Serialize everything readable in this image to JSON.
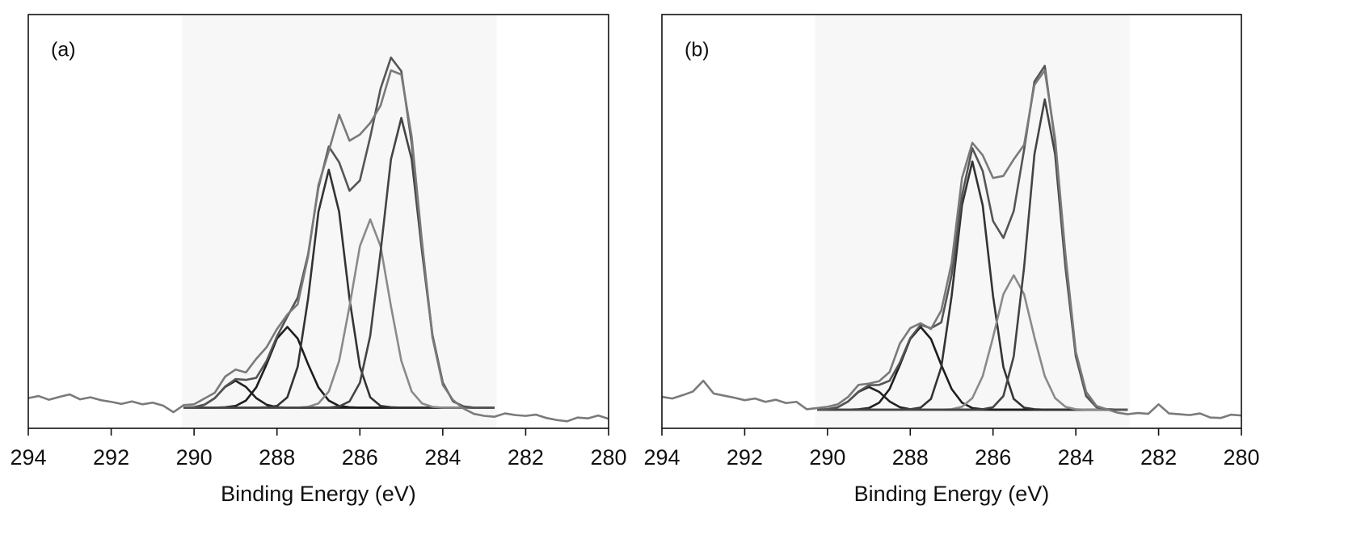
{
  "chart_data": [
    {
      "type": "line",
      "label": "(a)",
      "xlabel": "Binding Energy (eV)",
      "xlim": [
        294,
        280
      ],
      "xticks": [
        294,
        292,
        290,
        288,
        286,
        284,
        282,
        280
      ],
      "ylim": [
        0,
        100
      ],
      "shaded_range": [
        290.3,
        282.7
      ],
      "shade_color": "#f7f7f7",
      "x": [
        294,
        293.75,
        293.5,
        293.25,
        293,
        292.75,
        292.5,
        292.25,
        292,
        291.75,
        291.5,
        291.25,
        291,
        290.75,
        290.5,
        290.25,
        290,
        289.75,
        289.5,
        289.25,
        289,
        288.75,
        288.5,
        288.25,
        288,
        287.75,
        287.5,
        287.25,
        287,
        286.75,
        286.5,
        286.25,
        286,
        285.75,
        285.5,
        285.25,
        285,
        284.75,
        284.5,
        284.25,
        284,
        283.75,
        283.5,
        283.25,
        283,
        282.75,
        282.5,
        282.25,
        282,
        281.75,
        281.5,
        281.25,
        281,
        280.75,
        280.5,
        280.25,
        280
      ],
      "series": [
        {
          "color": "#444444",
          "values": [
            null,
            null,
            null,
            null,
            null,
            null,
            null,
            null,
            null,
            null,
            null,
            null,
            null,
            null,
            null,
            5,
            5,
            5,
            5,
            5,
            5,
            5,
            5,
            5,
            5,
            5,
            5,
            5,
            5,
            5,
            5,
            5,
            5,
            5,
            5,
            5,
            5,
            5,
            5,
            5,
            5,
            5,
            5,
            5,
            5,
            5,
            null,
            null,
            null,
            null,
            null,
            null,
            null,
            null,
            null,
            null,
            null
          ]
        },
        {
          "color": "#222222",
          "values": [
            null,
            null,
            null,
            null,
            null,
            null,
            null,
            null,
            null,
            null,
            null,
            null,
            null,
            null,
            null,
            5,
            5.1,
            5.7,
            7.3,
            10.0,
            11.5,
            10.0,
            7.3,
            5.7,
            5.1,
            5,
            5,
            5,
            5,
            5,
            5,
            5,
            5,
            5,
            5,
            5,
            5,
            5,
            5,
            5,
            5,
            5,
            5,
            5,
            5,
            5,
            null,
            null,
            null,
            null,
            null,
            null,
            null,
            null,
            null,
            null,
            null
          ]
        },
        {
          "color": "#1e1e1e",
          "values": [
            null,
            null,
            null,
            null,
            null,
            null,
            null,
            null,
            null,
            null,
            null,
            null,
            null,
            null,
            null,
            5,
            5,
            5,
            5,
            5.1,
            5.4,
            6.7,
            9.9,
            15.5,
            21.7,
            24.5,
            21.7,
            15.5,
            9.9,
            6.7,
            5.4,
            5.1,
            5,
            5,
            5,
            5,
            5,
            5,
            5,
            5,
            5,
            5,
            5,
            5,
            5,
            5,
            null,
            null,
            null,
            null,
            null,
            null,
            null,
            null,
            null,
            null,
            null
          ]
        },
        {
          "color": "#333333",
          "values": [
            null,
            null,
            null,
            null,
            null,
            null,
            null,
            null,
            null,
            null,
            null,
            null,
            null,
            null,
            null,
            5,
            5,
            5,
            5,
            5,
            5,
            5,
            5,
            5.1,
            5.4,
            7.5,
            14.9,
            31.3,
            52.3,
            62.5,
            52.3,
            31.3,
            14.9,
            7.5,
            5.4,
            5.1,
            5,
            5,
            5,
            5,
            5,
            5,
            5,
            5,
            5,
            5,
            null,
            null,
            null,
            null,
            null,
            null,
            null,
            null,
            null,
            null,
            null
          ]
        },
        {
          "color": "#8a8a8a",
          "values": [
            null,
            null,
            null,
            null,
            null,
            null,
            null,
            null,
            null,
            null,
            null,
            null,
            null,
            null,
            null,
            5,
            5,
            5,
            5,
            5,
            5,
            5,
            5,
            5,
            5,
            5,
            5,
            5.2,
            6.0,
            8.9,
            16.3,
            29.5,
            44.0,
            50.5,
            44.0,
            29.5,
            16.3,
            8.9,
            6.0,
            5.2,
            5,
            5,
            5,
            5,
            5,
            5,
            null,
            null,
            null,
            null,
            null,
            null,
            null,
            null,
            null,
            null,
            null
          ]
        },
        {
          "color": "#444444",
          "values": [
            null,
            null,
            null,
            null,
            null,
            null,
            null,
            null,
            null,
            null,
            null,
            null,
            null,
            null,
            null,
            5,
            5,
            5,
            5,
            5,
            5,
            5,
            5,
            5,
            5,
            5,
            5,
            5,
            5,
            5,
            5.3,
            6.5,
            11.0,
            22.4,
            42.7,
            65.0,
            75.0,
            65.0,
            42.7,
            22.4,
            11.0,
            6.5,
            5.3,
            5,
            5,
            5,
            null,
            null,
            null,
            null,
            null,
            null,
            null,
            null,
            null,
            null,
            null
          ]
        },
        {
          "color": "#555555",
          "values": [
            null,
            null,
            null,
            null,
            null,
            null,
            null,
            null,
            null,
            null,
            null,
            null,
            null,
            null,
            null,
            5.0,
            5.1,
            5.7,
            7.3,
            10.1,
            11.9,
            11.7,
            12.2,
            16.3,
            22.2,
            27.0,
            31.6,
            42.0,
            58.2,
            68.1,
            64.3,
            57.4,
            59.9,
            70.4,
            82.1,
            89.6,
            86.3,
            68.9,
            43.7,
            22.6,
            11.0,
            6.5,
            5.3,
            5,
            5,
            5,
            null,
            null,
            null,
            null,
            null,
            null,
            null,
            null,
            null,
            null,
            null
          ]
        },
        {
          "color": "#7a7a7a",
          "values": [
            7.3,
            7.8,
            6.9,
            7.6,
            8.2,
            7.0,
            7.5,
            6.8,
            6.4,
            5.9,
            6.5,
            5.8,
            6.2,
            5.5,
            3.9,
            5.6,
            5.8,
            7.2,
            8.6,
            12.5,
            14.2,
            13.5,
            16.8,
            19.6,
            24.0,
            27.5,
            30.0,
            41.5,
            58.8,
            67.0,
            75.8,
            69.5,
            71.0,
            73.8,
            78.0,
            86.5,
            85.5,
            70.5,
            45.0,
            22.0,
            10.5,
            6.8,
            4.8,
            3.5,
            3.0,
            2.8,
            3.6,
            3.2,
            3.0,
            3.3,
            2.5,
            2.0,
            1.7,
            2.6,
            2.4,
            3.1,
            2.3
          ]
        }
      ]
    },
    {
      "type": "line",
      "label": "(b)",
      "xlabel": "Binding Energy (eV)",
      "xlim": [
        294,
        280
      ],
      "xticks": [
        294,
        292,
        290,
        288,
        286,
        284,
        282,
        280
      ],
      "ylim": [
        0,
        100
      ],
      "shaded_range": [
        290.3,
        282.7
      ],
      "shade_color": "#f7f7f7",
      "x": [
        294,
        293.75,
        293.5,
        293.25,
        293,
        292.75,
        292.5,
        292.25,
        292,
        291.75,
        291.5,
        291.25,
        291,
        290.75,
        290.5,
        290.25,
        290,
        289.75,
        289.5,
        289.25,
        289,
        288.75,
        288.5,
        288.25,
        288,
        287.75,
        287.5,
        287.25,
        287,
        286.75,
        286.5,
        286.25,
        286,
        285.75,
        285.5,
        285.25,
        285,
        284.75,
        284.5,
        284.25,
        284,
        283.75,
        283.5,
        283.25,
        283,
        282.75,
        282.5,
        282.25,
        282,
        281.75,
        281.5,
        281.25,
        281,
        280.75,
        280.5,
        280.25,
        280
      ],
      "series": [
        {
          "color": "#444444",
          "values": [
            null,
            null,
            null,
            null,
            null,
            null,
            null,
            null,
            null,
            null,
            null,
            null,
            null,
            null,
            null,
            4.5,
            4.5,
            4.5,
            4.5,
            4.5,
            4.5,
            4.5,
            4.5,
            4.5,
            4.5,
            4.5,
            4.5,
            4.5,
            4.5,
            4.5,
            4.5,
            4.5,
            4.5,
            4.5,
            4.5,
            4.5,
            4.5,
            4.5,
            4.5,
            4.5,
            4.5,
            4.5,
            4.5,
            4.5,
            4.5,
            4.5,
            null,
            null,
            null,
            null,
            null,
            null,
            null,
            null,
            null,
            null,
            null
          ]
        },
        {
          "color": "#222222",
          "values": [
            null,
            null,
            null,
            null,
            null,
            null,
            null,
            null,
            null,
            null,
            null,
            null,
            null,
            null,
            null,
            4.5,
            4.6,
            5.1,
            6.5,
            8.8,
            10.0,
            8.8,
            6.5,
            5.1,
            4.6,
            4.5,
            4.5,
            4.5,
            4.5,
            4.5,
            4.5,
            4.5,
            4.5,
            4.5,
            4.5,
            4.5,
            4.5,
            4.5,
            4.5,
            4.5,
            4.5,
            4.5,
            4.5,
            4.5,
            4.5,
            4.5,
            null,
            null,
            null,
            null,
            null,
            null,
            null,
            null,
            null,
            null,
            null
          ]
        },
        {
          "color": "#1e1e1e",
          "values": [
            null,
            null,
            null,
            null,
            null,
            null,
            null,
            null,
            null,
            null,
            null,
            null,
            null,
            null,
            null,
            4.5,
            4.5,
            4.5,
            4.5,
            4.6,
            4.9,
            6.2,
            9.5,
            15.3,
            21.6,
            24.5,
            21.6,
            15.3,
            9.5,
            6.2,
            4.9,
            4.6,
            4.5,
            4.5,
            4.5,
            4.5,
            4.5,
            4.5,
            4.5,
            4.5,
            4.5,
            4.5,
            4.5,
            4.5,
            4.5,
            4.5,
            null,
            null,
            null,
            null,
            null,
            null,
            null,
            null,
            null,
            null,
            null
          ]
        },
        {
          "color": "#333333",
          "values": [
            null,
            null,
            null,
            null,
            null,
            null,
            null,
            null,
            null,
            null,
            null,
            null,
            null,
            null,
            null,
            4.5,
            4.5,
            4.5,
            4.5,
            4.5,
            4.5,
            4.5,
            4.5,
            4.5,
            4.6,
            5.0,
            7.1,
            14.8,
            32.0,
            53.9,
            64.5,
            53.9,
            32.0,
            14.8,
            7.1,
            5.0,
            4.6,
            4.5,
            4.5,
            4.5,
            4.5,
            4.5,
            4.5,
            4.5,
            4.5,
            4.5,
            null,
            null,
            null,
            null,
            null,
            null,
            null,
            null,
            null,
            null,
            null
          ]
        },
        {
          "color": "#8a8a8a",
          "values": [
            null,
            null,
            null,
            null,
            null,
            null,
            null,
            null,
            null,
            null,
            null,
            null,
            null,
            null,
            null,
            4.5,
            4.5,
            4.5,
            4.5,
            4.5,
            4.5,
            4.5,
            4.5,
            4.5,
            4.5,
            4.5,
            4.5,
            4.5,
            4.6,
            5.2,
            7.3,
            12.6,
            22.0,
            32.4,
            37.0,
            32.4,
            22.0,
            12.6,
            7.3,
            5.2,
            4.6,
            4.5,
            4.5,
            4.5,
            4.5,
            4.5,
            null,
            null,
            null,
            null,
            null,
            null,
            null,
            null,
            null,
            null,
            null
          ]
        },
        {
          "color": "#444444",
          "values": [
            null,
            null,
            null,
            null,
            null,
            null,
            null,
            null,
            null,
            null,
            null,
            null,
            null,
            null,
            null,
            4.5,
            4.5,
            4.5,
            4.5,
            4.5,
            4.5,
            4.5,
            4.5,
            4.5,
            4.5,
            4.5,
            4.5,
            4.5,
            4.5,
            4.5,
            4.5,
            4.6,
            5.1,
            7.8,
            17.4,
            38.9,
            66.2,
            79.5,
            66.2,
            38.9,
            17.4,
            7.8,
            5.1,
            4.6,
            4.5,
            4.5,
            null,
            null,
            null,
            null,
            null,
            null,
            null,
            null,
            null,
            null,
            null
          ]
        },
        {
          "color": "#555555",
          "values": [
            null,
            null,
            null,
            null,
            null,
            null,
            null,
            null,
            null,
            null,
            null,
            null,
            null,
            null,
            null,
            4.5,
            4.6,
            5.1,
            6.5,
            8.9,
            10.4,
            10.5,
            11.5,
            15.9,
            21.8,
            25.0,
            24.2,
            25.6,
            37.1,
            56.3,
            67.7,
            62.2,
            50.1,
            46.0,
            52.5,
            67.3,
            83.8,
            87.6,
            69.0,
            39.6,
            17.5,
            7.8,
            5.1,
            4.6,
            4.5,
            4.5,
            null,
            null,
            null,
            null,
            null,
            null,
            null,
            null,
            null,
            null,
            null
          ]
        },
        {
          "color": "#7a7a7a",
          "values": [
            7.6,
            7.2,
            8.0,
            8.9,
            11.5,
            8.4,
            7.9,
            7.4,
            6.8,
            7.2,
            6.4,
            6.9,
            6.1,
            6.4,
            4.6,
            4.9,
            5.2,
            5.8,
            7.6,
            10.5,
            10.8,
            11.4,
            13.6,
            20.5,
            24.2,
            25.4,
            24.0,
            28.5,
            40.0,
            60.5,
            69.0,
            66.0,
            60.5,
            61.0,
            65.0,
            68.5,
            83.0,
            86.5,
            70.0,
            42.0,
            18.5,
            8.8,
            5.4,
            4.6,
            3.8,
            3.4,
            3.7,
            3.5,
            5.8,
            3.6,
            3.4,
            3.2,
            3.6,
            2.6,
            2.5,
            3.3,
            3.1
          ]
        }
      ]
    }
  ]
}
